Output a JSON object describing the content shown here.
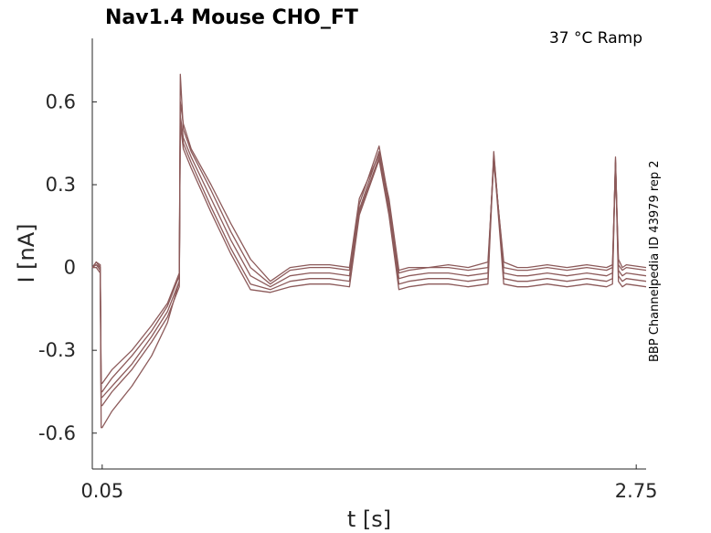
{
  "chart_data": {
    "type": "line",
    "title": "Nav1.4  Mouse  CHO_FT",
    "condition": "37 °C  Ramp",
    "side_label": "BBP Channelpedia ID 43979 rep 2",
    "xlabel": "t [s]",
    "ylabel": "I [nA]",
    "xlim": [
      0,
      2.8
    ],
    "ylim": [
      -0.73,
      0.83
    ],
    "x_ticks": [
      0.05,
      2.75
    ],
    "x_tick_labels": [
      "0.05",
      "2.75"
    ],
    "y_ticks": [
      0.6,
      0.3,
      0,
      -0.3,
      -0.6
    ],
    "y_tick_labels": [
      "0.6",
      "0.3",
      "0",
      "-0.3",
      "-0.6"
    ],
    "grid": false,
    "line_color": "#8c5a5a",
    "series": [
      {
        "x": [
          0.0,
          0.02,
          0.04,
          0.045,
          0.05,
          0.1,
          0.2,
          0.3,
          0.38,
          0.44,
          0.445,
          0.46,
          0.5,
          0.6,
          0.7,
          0.8,
          0.9,
          1.0,
          1.1,
          1.2,
          1.3,
          1.35,
          1.45,
          1.5,
          1.55,
          1.6,
          1.7,
          1.8,
          1.9,
          2.0,
          2.03,
          2.08,
          2.15,
          2.2,
          2.3,
          2.4,
          2.5,
          2.6,
          2.63,
          2.645,
          2.66,
          2.68,
          2.7,
          2.8
        ],
        "values": [
          0.0,
          0.02,
          0.01,
          -0.42,
          -0.42,
          -0.37,
          -0.3,
          -0.21,
          -0.13,
          -0.02,
          0.6,
          0.52,
          0.43,
          0.3,
          0.16,
          0.03,
          -0.05,
          0.0,
          0.01,
          0.01,
          0.0,
          0.25,
          0.41,
          0.25,
          -0.01,
          0.0,
          0.0,
          0.01,
          0.0,
          0.02,
          0.38,
          0.02,
          0.0,
          0.0,
          0.01,
          0.0,
          0.01,
          0.0,
          0.01,
          0.38,
          0.03,
          0.0,
          0.01,
          0.0
        ]
      },
      {
        "x": [
          0.0,
          0.02,
          0.04,
          0.045,
          0.05,
          0.1,
          0.2,
          0.3,
          0.38,
          0.44,
          0.445,
          0.46,
          0.5,
          0.6,
          0.7,
          0.8,
          0.9,
          1.0,
          1.1,
          1.2,
          1.3,
          1.35,
          1.45,
          1.5,
          1.55,
          1.6,
          1.7,
          1.8,
          1.9,
          2.0,
          2.03,
          2.08,
          2.15,
          2.2,
          2.3,
          2.4,
          2.5,
          2.6,
          2.63,
          2.645,
          2.66,
          2.68,
          2.7,
          2.8
        ],
        "values": [
          0.0,
          0.02,
          0.0,
          -0.45,
          -0.45,
          -0.4,
          -0.32,
          -0.23,
          -0.14,
          -0.03,
          0.7,
          0.5,
          0.42,
          0.28,
          0.13,
          0.0,
          -0.06,
          -0.01,
          0.0,
          0.0,
          -0.01,
          0.23,
          0.44,
          0.24,
          -0.02,
          -0.01,
          0.0,
          0.0,
          -0.01,
          0.0,
          0.4,
          0.0,
          -0.01,
          -0.01,
          0.0,
          -0.01,
          0.0,
          -0.01,
          0.0,
          0.37,
          0.01,
          -0.01,
          0.0,
          -0.01
        ]
      },
      {
        "x": [
          0.0,
          0.02,
          0.04,
          0.045,
          0.05,
          0.1,
          0.2,
          0.3,
          0.38,
          0.44,
          0.445,
          0.46,
          0.5,
          0.6,
          0.7,
          0.8,
          0.9,
          1.0,
          1.1,
          1.2,
          1.3,
          1.35,
          1.45,
          1.5,
          1.55,
          1.6,
          1.7,
          1.8,
          1.9,
          2.0,
          2.03,
          2.08,
          2.15,
          2.2,
          2.3,
          2.4,
          2.5,
          2.6,
          2.63,
          2.645,
          2.66,
          2.68,
          2.7,
          2.8
        ],
        "values": [
          0.0,
          0.01,
          0.0,
          -0.47,
          -0.47,
          -0.43,
          -0.35,
          -0.25,
          -0.16,
          -0.05,
          0.55,
          0.47,
          0.4,
          0.25,
          0.1,
          -0.03,
          -0.07,
          -0.03,
          -0.02,
          -0.02,
          -0.03,
          0.21,
          0.42,
          0.22,
          -0.04,
          -0.03,
          -0.02,
          -0.02,
          -0.03,
          -0.02,
          0.41,
          -0.02,
          -0.03,
          -0.03,
          -0.02,
          -0.03,
          -0.02,
          -0.03,
          -0.02,
          0.39,
          -0.01,
          -0.03,
          -0.02,
          -0.03
        ]
      },
      {
        "x": [
          0.0,
          0.02,
          0.04,
          0.045,
          0.05,
          0.1,
          0.2,
          0.3,
          0.38,
          0.44,
          0.445,
          0.46,
          0.5,
          0.6,
          0.7,
          0.8,
          0.9,
          1.0,
          1.1,
          1.2,
          1.3,
          1.35,
          1.45,
          1.5,
          1.55,
          1.6,
          1.7,
          1.8,
          1.9,
          2.0,
          2.03,
          2.08,
          2.15,
          2.2,
          2.3,
          2.4,
          2.5,
          2.6,
          2.63,
          2.645,
          2.66,
          2.68,
          2.7,
          2.8
        ],
        "values": [
          0.0,
          0.01,
          -0.01,
          -0.5,
          -0.5,
          -0.45,
          -0.37,
          -0.27,
          -0.18,
          -0.07,
          0.54,
          0.45,
          0.38,
          0.22,
          0.07,
          -0.06,
          -0.08,
          -0.05,
          -0.04,
          -0.04,
          -0.05,
          0.2,
          0.4,
          0.2,
          -0.06,
          -0.05,
          -0.04,
          -0.04,
          -0.05,
          -0.04,
          0.42,
          -0.04,
          -0.05,
          -0.05,
          -0.04,
          -0.05,
          -0.04,
          -0.05,
          -0.04,
          0.4,
          -0.03,
          -0.05,
          -0.04,
          -0.05
        ]
      },
      {
        "x": [
          0.0,
          0.02,
          0.04,
          0.045,
          0.05,
          0.1,
          0.2,
          0.3,
          0.38,
          0.44,
          0.445,
          0.46,
          0.5,
          0.6,
          0.7,
          0.8,
          0.9,
          1.0,
          1.1,
          1.2,
          1.3,
          1.35,
          1.45,
          1.5,
          1.55,
          1.6,
          1.7,
          1.8,
          1.9,
          2.0,
          2.03,
          2.08,
          2.15,
          2.2,
          2.3,
          2.4,
          2.5,
          2.6,
          2.63,
          2.645,
          2.66,
          2.68,
          2.7,
          2.8
        ],
        "values": [
          0.0,
          0.0,
          -0.02,
          -0.58,
          -0.58,
          -0.52,
          -0.43,
          -0.32,
          -0.2,
          -0.05,
          0.52,
          0.43,
          0.36,
          0.2,
          0.05,
          -0.08,
          -0.09,
          -0.07,
          -0.06,
          -0.06,
          -0.07,
          0.19,
          0.39,
          0.19,
          -0.08,
          -0.07,
          -0.06,
          -0.06,
          -0.07,
          -0.06,
          0.4,
          -0.06,
          -0.07,
          -0.07,
          -0.06,
          -0.07,
          -0.06,
          -0.07,
          -0.06,
          0.38,
          -0.05,
          -0.07,
          -0.06,
          -0.07
        ]
      }
    ]
  }
}
